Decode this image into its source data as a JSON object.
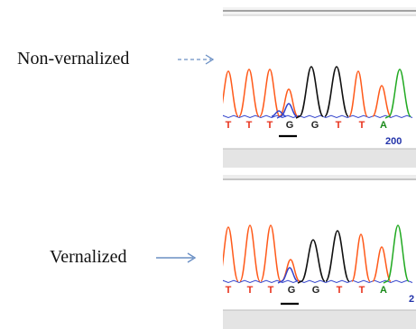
{
  "labels": {
    "top": "Non-vernalized",
    "bottom": "Vernalized"
  },
  "bases": [
    "T",
    "T",
    "T",
    "G",
    "G",
    "T",
    "T",
    "A"
  ],
  "base_colors": {
    "T": "#e8301a",
    "G": "#222222",
    "A": "#1a8a1a"
  },
  "underlined_base_index": 3,
  "top_position_label": "200",
  "bottom_position_label": "2",
  "trace_colors": {
    "T": "#ff5a1a",
    "G": "#111111",
    "C": "#3344cc",
    "A": "#22aa22"
  },
  "arrow_color": "#6a8fc4"
}
